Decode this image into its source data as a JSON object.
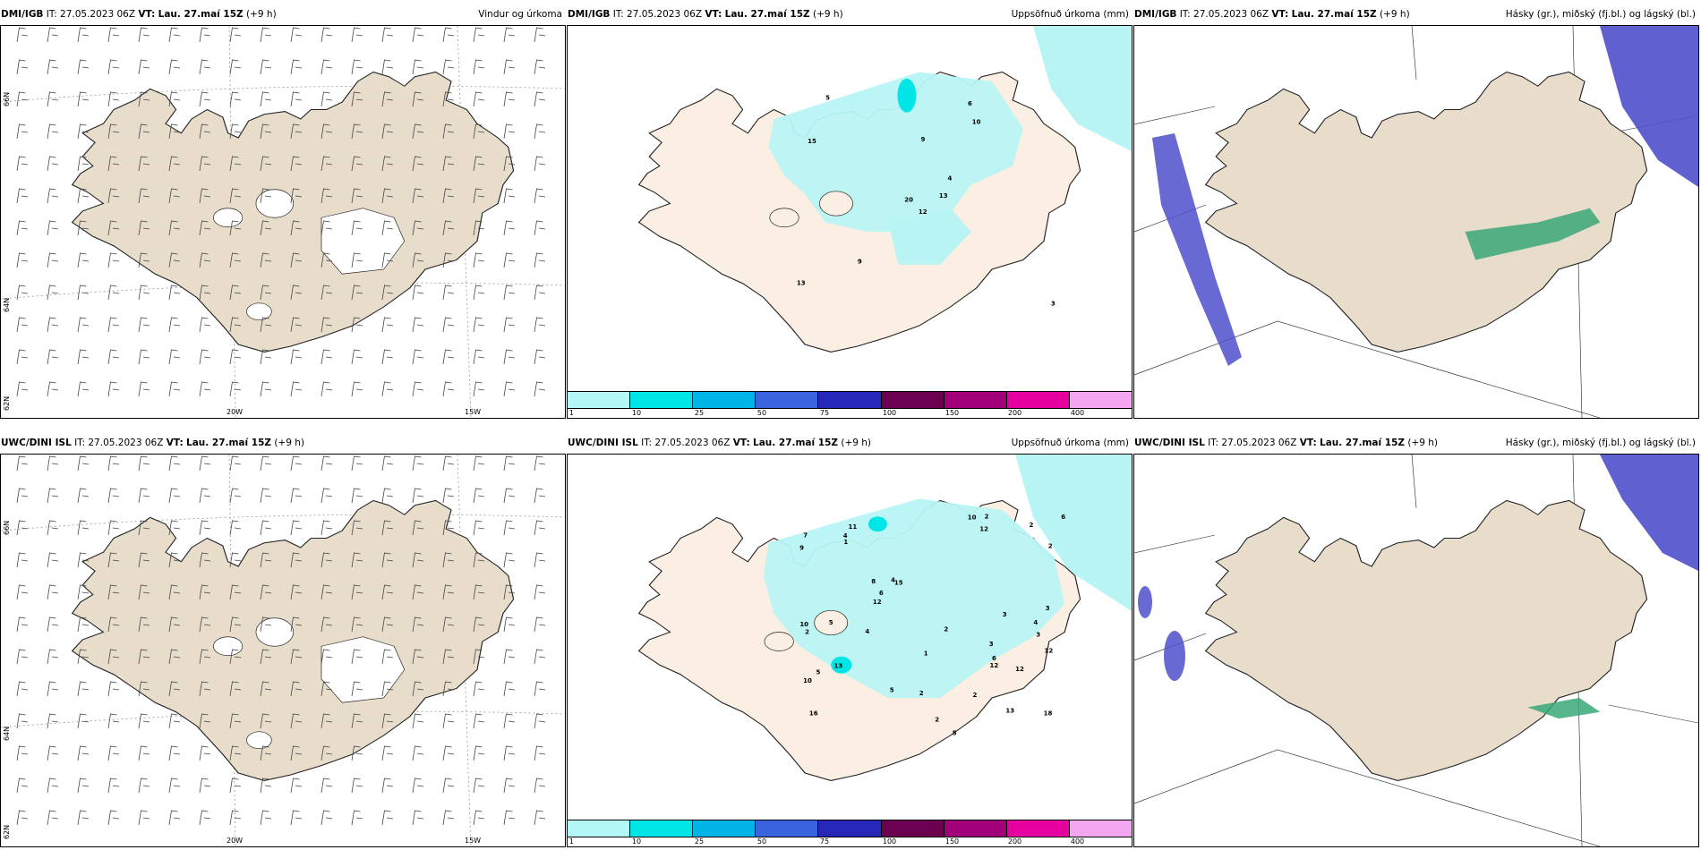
{
  "panels": [
    {
      "model": "DMI/IGB",
      "it_label": "IT:",
      "it_value": "27.05.2023 06Z",
      "vt_label": "VT:",
      "vt_value": "Lau. 27.maí 15Z",
      "lead": "(+9 h)",
      "title": "Vindur og úrkoma"
    },
    {
      "model": "DMI/IGB",
      "it_label": "IT:",
      "it_value": "27.05.2023 06Z",
      "vt_label": "VT:",
      "vt_value": "Lau. 27.maí 15Z",
      "lead": "(+9 h)",
      "title": "Uppsöfnuð úrkoma (mm)"
    },
    {
      "model": "DMI/IGB",
      "it_label": "IT:",
      "it_value": "27.05.2023 06Z",
      "vt_label": "VT:",
      "vt_value": "Lau. 27.maí 15Z",
      "lead": "(+9 h)",
      "title": "Hásky (gr.), miðský (fj.bl.) og lágský (bl.)"
    },
    {
      "model": "UWC/DINI ISL",
      "it_label": "IT:",
      "it_value": "27.05.2023 06Z",
      "vt_label": "VT:",
      "vt_value": "Lau. 27.maí 15Z",
      "lead": "(+9 h)",
      "title": ""
    },
    {
      "model": "UWC/DINI ISL",
      "it_label": "IT:",
      "it_value": "27.05.2023 06Z",
      "vt_label": "VT:",
      "vt_value": "Lau. 27.maí 15Z",
      "lead": "(+9 h)",
      "title": "Uppsöfnuð úrkoma (mm)"
    },
    {
      "model": "UWC/DINI ISL",
      "it_label": "IT:",
      "it_value": "27.05.2023 06Z",
      "vt_label": "VT:",
      "vt_value": "Lau. 27.maí 15Z",
      "lead": "(+9 h)",
      "title": "Hásky (gr.), miðský (fj.bl.) og lágský (bl.)"
    }
  ],
  "axis_labels": {
    "lon1": "20W",
    "lon2": "15W",
    "lat1": "66N",
    "lat2": "64N",
    "lat3": "62N"
  },
  "colorbar": {
    "labels": [
      "1",
      "10",
      "25",
      "50",
      "75",
      "100",
      "150",
      "200",
      "400"
    ],
    "colors": [
      "#b3f7f7",
      "#00e5e5",
      "#00b4e8",
      "#3a63e0",
      "#2626b8",
      "#6b0050",
      "#a1007a",
      "#e600a0",
      "#f5a6f0"
    ]
  },
  "precip_values_top": [
    "12",
    "15",
    "20",
    "13",
    "4",
    "9",
    "6",
    "9",
    "10",
    "13",
    "5",
    "3"
  ],
  "precip_values_bottom": [
    "3",
    "3",
    "16",
    "11",
    "15",
    "13",
    "10",
    "12",
    "8",
    "5",
    "9",
    "10",
    "7",
    "18",
    "5",
    "3",
    "1",
    "2",
    "4",
    "13",
    "6",
    "2",
    "12",
    "12",
    "10",
    "4",
    "6",
    "2",
    "1",
    "3",
    "2",
    "2",
    "6",
    "4",
    "4",
    "12",
    "12",
    "5",
    "2",
    "5",
    "2",
    "2"
  ],
  "land_color": "#f5e6d4",
  "wind_land_color": "#e8dccb",
  "precip_land_color": "#fbeee2",
  "precip_cyan": "#b8f4f4",
  "cloud_blue": "#4f4fcc",
  "cloud_green": "#3aa878"
}
